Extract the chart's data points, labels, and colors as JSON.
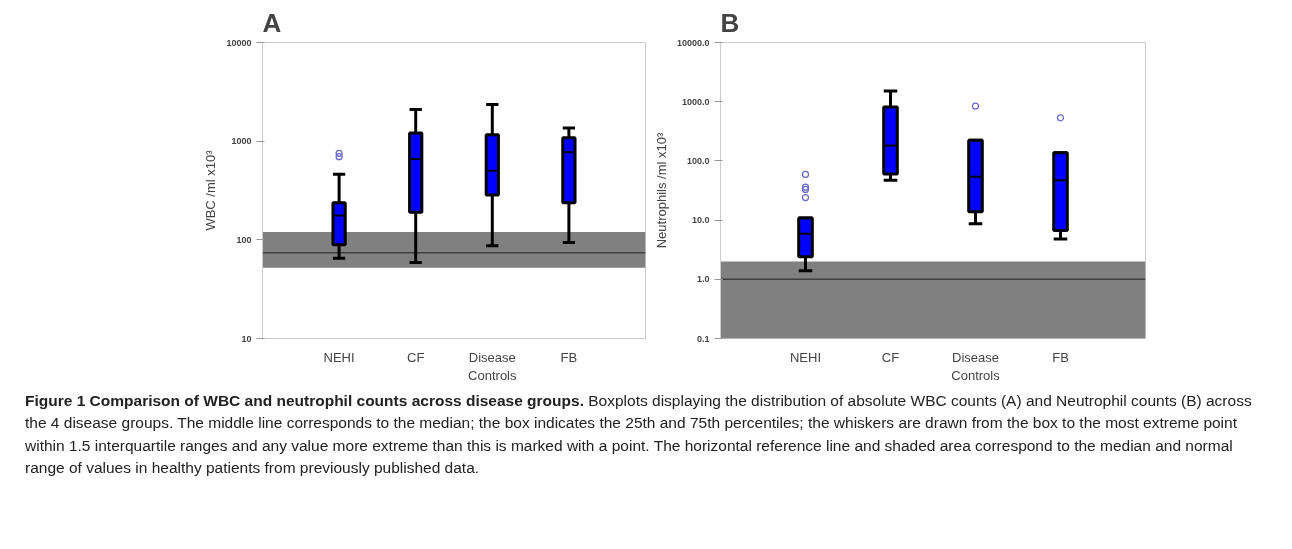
{
  "chart_data": [
    {
      "type": "box",
      "title": "A",
      "ylabel": "WBC /ml x10³",
      "categories": [
        "NEHI",
        "CF",
        "Disease Controls",
        "FB"
      ],
      "color": "#0000ff",
      "log": true,
      "ylim": [
        10,
        10000
      ],
      "yticks": [
        10,
        100,
        1000,
        10000
      ],
      "grid": false,
      "boxes": [
        {
          "low": 65,
          "q1": 89,
          "median": 176,
          "q3": 237,
          "high": 462,
          "outliers": [
            697,
            753
          ]
        },
        {
          "low": 59,
          "q1": 190,
          "median": 659,
          "q3": 1208,
          "high": 2096
        },
        {
          "low": 87,
          "q1": 284,
          "median": 500,
          "q3": 1161,
          "high": 2355
        },
        {
          "low": 94,
          "q1": 237,
          "median": 771,
          "q3": 1082,
          "high": 1360
        }
      ],
      "ref_lines": [
        {
          "axis": "y",
          "value": 74,
          "color": "#404040"
        }
      ],
      "bands": [
        {
          "axis": "y",
          "from": 52,
          "to": 120,
          "color": "#808080"
        }
      ],
      "annotations": [
        "Figure 1 Comparison of WBC and neutrophil counts across disease groups.",
        "Boxplots displaying the distribution of absolute WBC counts (A) and Neutrophil counts (B) across the 4 disease groups. The middle line corresponds to the median; the box indicates the 25th and 75th percentiles; the whiskers are drawn from the box to the most extreme point within 1.5 interquartile ranges and any value more extreme than this is marked with a point. The horizontal reference line and shaded area correspond to the median and normal range of values in healthy patients from previously published data."
      ]
    },
    {
      "type": "box",
      "title": "B",
      "ylabel": "Neutrophils /ml x10³",
      "categories": [
        "NEHI",
        "CF",
        "Disease Controls",
        "FB"
      ],
      "color": "#0000ff",
      "log": true,
      "ylim": [
        0.1,
        10000
      ],
      "yticks": [
        {
          "value": 0.1,
          "label": "0.1"
        },
        {
          "value": 1,
          "label": "1.0"
        },
        {
          "value": 10,
          "label": "10.0"
        },
        {
          "value": 100,
          "label": "100.0"
        },
        {
          "value": 1000,
          "label": "1000.0"
        },
        {
          "value": 10000,
          "label": "10000.0"
        }
      ],
      "grid": false,
      "boxes": [
        {
          "low": 1.4,
          "q1": 2.4,
          "median": 5.9,
          "q3": 10.9,
          "high": 10.9,
          "outliers": [
            24,
            33,
            36,
            59
          ]
        },
        {
          "low": 47,
          "q1": 60,
          "median": 182,
          "q3": 811,
          "high": 1511
        },
        {
          "low": 8.7,
          "q1": 13.8,
          "median": 54,
          "q3": 224,
          "high": 224,
          "outliers": [
            843
          ]
        },
        {
          "low": 4.8,
          "q1": 6.7,
          "median": 47,
          "q3": 137,
          "high": 137,
          "outliers": [
            535
          ]
        }
      ],
      "ref_lines": [
        {
          "axis": "y",
          "value": 1,
          "color": "#404040"
        }
      ],
      "bands": [
        {
          "axis": "y",
          "from": 0.1,
          "to": 2,
          "color": "#808080"
        }
      ]
    }
  ]
}
